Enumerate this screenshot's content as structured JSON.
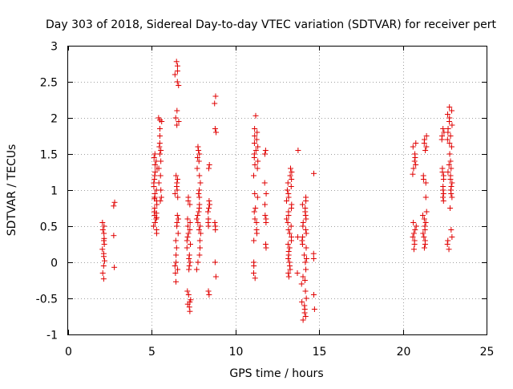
{
  "chart_data": {
    "type": "scatter",
    "title": "Day 303 of 2018, Sidereal Day-to-day VTEC variation (SDTVAR) for receiver pert",
    "xlabel": "GPS time / hours",
    "ylabel": "SDTVAR / TECUs",
    "xlim": [
      0,
      25
    ],
    "ylim": [
      -1,
      3
    ],
    "xticks": [
      0,
      5,
      10,
      15,
      20,
      25
    ],
    "xtick_labels": [
      "0",
      "5",
      "10",
      "15",
      "20",
      "25"
    ],
    "yticks": [
      -1,
      -0.5,
      0,
      0.5,
      1,
      1.5,
      2,
      2.5,
      3
    ],
    "ytick_labels": [
      "-1",
      "-0.5",
      "0",
      "0.5",
      "1",
      "1.5",
      "2",
      "2.5",
      "3"
    ],
    "grid": true,
    "marker": "+",
    "color": "#e00000",
    "clusters": [
      {
        "x": 2.1,
        "x_spread": 0.08,
        "y": [
          -0.23,
          -0.15,
          -0.05,
          0.02,
          0.08,
          0.12,
          0.18,
          0.25,
          0.3,
          0.33,
          0.4,
          0.45,
          0.5,
          0.55
        ]
      },
      {
        "x": 2.75,
        "x_spread": 0.05,
        "y": [
          -0.07,
          0.37,
          0.78,
          0.83
        ]
      },
      {
        "x": 5.2,
        "x_spread": 0.12,
        "y": [
          0.4,
          0.45,
          0.5,
          0.55,
          0.6,
          0.65,
          0.7,
          0.75,
          0.8,
          0.85,
          0.9,
          0.95,
          1.0,
          1.05,
          1.1,
          1.15,
          1.2,
          1.25,
          1.3,
          1.35,
          1.4,
          1.45,
          1.5,
          0.62,
          0.68,
          0.88
        ]
      },
      {
        "x": 5.5,
        "x_spread": 0.1,
        "y": [
          0.85,
          0.9,
          1.0,
          1.1,
          1.2,
          1.3,
          1.4,
          1.5,
          1.55,
          1.6,
          1.65,
          1.75,
          1.85,
          1.95,
          1.97,
          2.0
        ]
      },
      {
        "x": 6.5,
        "x_spread": 0.12,
        "y": [
          -0.27,
          -0.15,
          -0.1,
          -0.05,
          0.0,
          0.1,
          0.2,
          0.3,
          0.4,
          0.5,
          0.55,
          0.6,
          0.65,
          0.9,
          0.95,
          1.0,
          1.05,
          1.1,
          1.15,
          1.2,
          1.9,
          1.95,
          2.0,
          2.1,
          2.45,
          2.5,
          2.6,
          2.65,
          2.72,
          2.78
        ]
      },
      {
        "x": 7.2,
        "x_spread": 0.12,
        "y": [
          -0.68,
          -0.62,
          -0.58,
          -0.55,
          -0.52,
          -0.45,
          -0.4,
          -0.1,
          -0.05,
          0.0,
          0.05,
          0.1,
          0.2,
          0.25,
          0.3,
          0.35,
          0.4,
          0.45,
          0.5,
          0.55,
          0.6,
          0.8,
          0.85,
          0.9
        ]
      },
      {
        "x": 7.8,
        "x_spread": 0.12,
        "y": [
          -0.1,
          0.0,
          0.1,
          0.2,
          0.3,
          0.4,
          0.45,
          0.5,
          0.55,
          0.6,
          0.65,
          0.7,
          0.75,
          0.8,
          0.9,
          0.95,
          1.0,
          1.1,
          1.2,
          1.3,
          1.4,
          1.45,
          1.5,
          1.55,
          1.6
        ]
      },
      {
        "x": 8.4,
        "x_spread": 0.06,
        "y": [
          -0.45,
          -0.4,
          0.5,
          0.55,
          0.6,
          0.7,
          0.75,
          0.8,
          0.85,
          1.3,
          1.35
        ]
      },
      {
        "x": 8.8,
        "x_spread": 0.05,
        "y": [
          -0.2,
          0.0,
          0.45,
          0.5,
          0.55,
          1.8,
          1.85,
          2.2,
          2.3
        ]
      },
      {
        "x": 11.2,
        "x_spread": 0.14,
        "y": [
          -0.22,
          -0.15,
          -0.05,
          0.0,
          0.3,
          0.4,
          0.45,
          0.55,
          0.6,
          0.7,
          0.75,
          0.9,
          0.95,
          1.2,
          1.3,
          1.35,
          1.4,
          1.45,
          1.5,
          1.55,
          1.6,
          1.65,
          1.7,
          1.75,
          1.8,
          1.85,
          2.03
        ]
      },
      {
        "x": 11.8,
        "x_spread": 0.06,
        "y": [
          0.2,
          0.25,
          0.55,
          0.6,
          0.65,
          0.8,
          0.95,
          1.1,
          1.5,
          1.55
        ]
      },
      {
        "x": 13.2,
        "x_spread": 0.16,
        "y": [
          -0.2,
          -0.15,
          -0.1,
          -0.05,
          0.0,
          0.05,
          0.1,
          0.15,
          0.2,
          0.25,
          0.3,
          0.35,
          0.4,
          0.45,
          0.5,
          0.55,
          0.6,
          0.65,
          0.7,
          0.75,
          0.8,
          0.85,
          0.9,
          0.95,
          1.0,
          1.05,
          1.1,
          1.15,
          1.2,
          1.25,
          1.3
        ]
      },
      {
        "x": 13.7,
        "x_spread": 0.05,
        "y": [
          -0.15,
          0.35,
          1.55
        ]
      },
      {
        "x": 14.1,
        "x_spread": 0.16,
        "y": [
          -0.8,
          -0.75,
          -0.7,
          -0.65,
          -0.6,
          -0.55,
          -0.5,
          -0.4,
          -0.3,
          -0.25,
          -0.2,
          -0.1,
          0.0,
          0.05,
          0.1,
          0.2,
          0.25,
          0.3,
          0.35,
          0.4,
          0.45,
          0.5,
          0.55,
          0.6,
          0.65,
          0.7,
          0.75,
          0.8,
          0.85,
          0.9
        ]
      },
      {
        "x": 14.7,
        "x_spread": 0.04,
        "y": [
          -0.65,
          -0.45,
          0.05,
          0.12,
          1.23
        ]
      },
      {
        "x": 20.7,
        "x_spread": 0.12,
        "y": [
          0.18,
          0.25,
          0.3,
          0.35,
          0.4,
          0.45,
          0.5,
          0.55,
          1.22,
          1.3,
          1.35,
          1.4,
          1.45,
          1.5,
          1.6,
          1.65
        ]
      },
      {
        "x": 21.3,
        "x_spread": 0.12,
        "y": [
          0.2,
          0.25,
          0.3,
          0.35,
          0.4,
          0.45,
          0.5,
          0.55,
          0.6,
          0.65,
          0.7,
          0.9,
          1.1,
          1.15,
          1.2,
          1.55,
          1.6,
          1.65,
          1.7,
          1.75
        ]
      },
      {
        "x": 22.4,
        "x_spread": 0.08,
        "y": [
          0.85,
          0.9,
          0.95,
          1.0,
          1.05,
          1.15,
          1.2,
          1.25,
          1.3,
          1.7,
          1.75,
          1.8,
          1.85
        ]
      },
      {
        "x": 22.8,
        "x_spread": 0.14,
        "y": [
          0.18,
          0.25,
          0.3,
          0.35,
          0.45,
          0.75,
          0.9,
          0.95,
          1.0,
          1.05,
          1.1,
          1.15,
          1.2,
          1.25,
          1.3,
          1.35,
          1.4,
          1.5,
          1.6,
          1.65,
          1.7,
          1.75,
          1.8,
          1.85,
          1.9,
          1.95,
          2.0,
          2.05,
          2.1,
          2.15
        ]
      }
    ]
  }
}
